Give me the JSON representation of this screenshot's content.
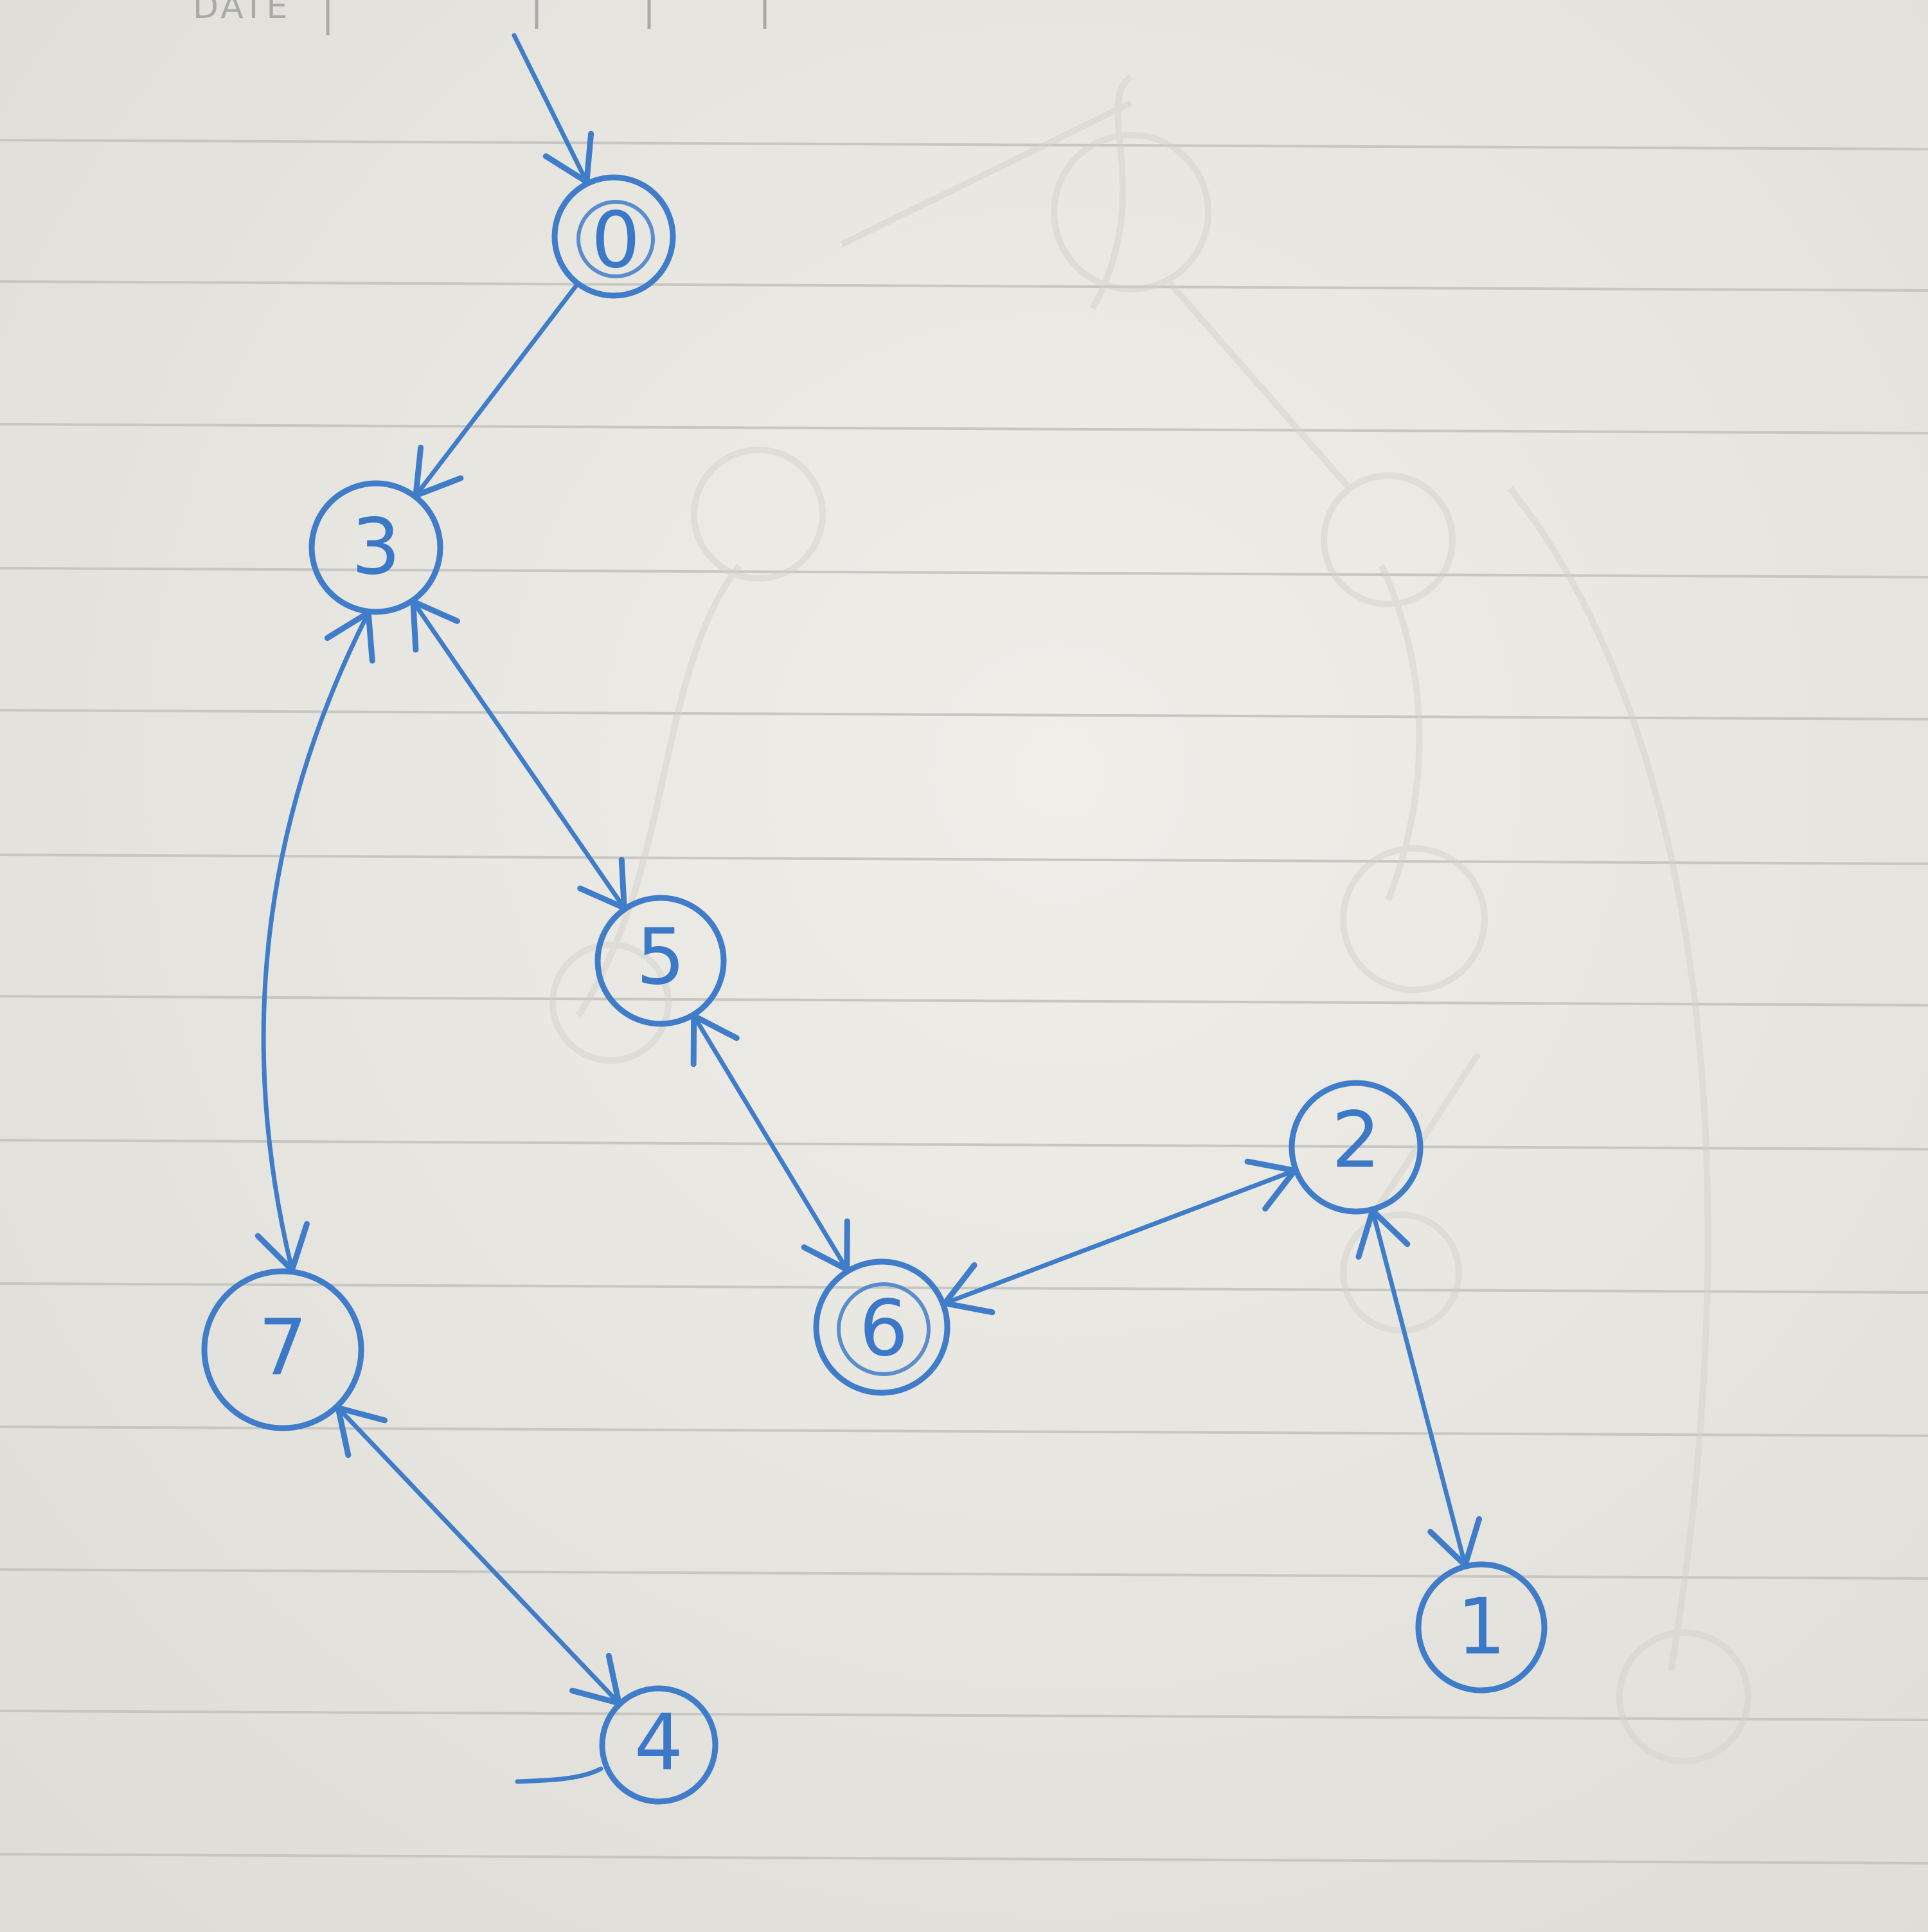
{
  "header": {
    "date_label": "DATE"
  },
  "diagram": {
    "nodes": [
      {
        "id": "0",
        "label": "0"
      },
      {
        "id": "3",
        "label": "3"
      },
      {
        "id": "5",
        "label": "5"
      },
      {
        "id": "2",
        "label": "2"
      },
      {
        "id": "6",
        "label": "6"
      },
      {
        "id": "7",
        "label": "7"
      },
      {
        "id": "1",
        "label": "1"
      },
      {
        "id": "4",
        "label": "4"
      }
    ],
    "edges": [
      {
        "from": "start",
        "to": "0",
        "direction": "incoming"
      },
      {
        "from": "0",
        "to": "3",
        "direction": "forward"
      },
      {
        "from": "3",
        "to": "5",
        "direction": "both"
      },
      {
        "from": "3",
        "to": "7",
        "direction": "both"
      },
      {
        "from": "5",
        "to": "6",
        "direction": "both"
      },
      {
        "from": "6",
        "to": "2",
        "direction": "both"
      },
      {
        "from": "2",
        "to": "1",
        "direction": "both"
      },
      {
        "from": "7",
        "to": "4",
        "direction": "both"
      }
    ],
    "ink_color": "#3f7cc9",
    "paper_color": "#e9e7e2",
    "rule_color": "#c9c9c6"
  }
}
